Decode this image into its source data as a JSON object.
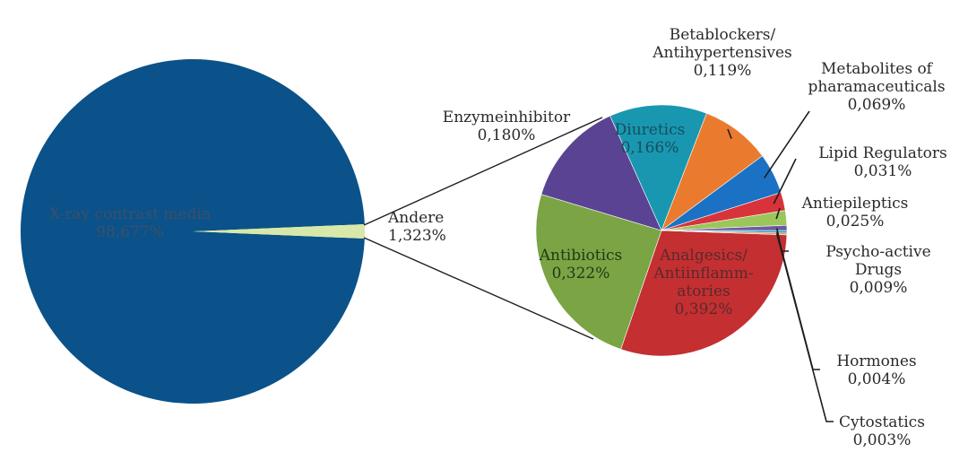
{
  "chart_data": {
    "type": "pie",
    "title": "",
    "main_pie": {
      "slices": [
        {
          "label_lines": [
            "X-ray contrast media",
            "98,677%"
          ],
          "value": 98.677,
          "color": "#0a5289"
        },
        {
          "label_lines": [
            "Andere",
            "1,323%"
          ],
          "value": 1.323,
          "color": "#d8e8a8"
        }
      ]
    },
    "sub_pie": {
      "of": "Andere",
      "slices": [
        {
          "label_lines": [
            "Analgesics/",
            "Antiinflamm-",
            "atories",
            "0,392%"
          ],
          "value": 0.392,
          "color": "#c42f32"
        },
        {
          "label_lines": [
            "Antibiotics",
            "0,322%"
          ],
          "value": 0.322,
          "color": "#7ba444"
        },
        {
          "label_lines": [
            "Enzymeinhibitor",
            "0,180%"
          ],
          "value": 0.18,
          "color": "#5b4393"
        },
        {
          "label_lines": [
            "Diuretics",
            "0,166%"
          ],
          "value": 0.166,
          "color": "#1997b0"
        },
        {
          "label_lines": [
            "Betablockers/",
            "Antihypertensives",
            "0,119%"
          ],
          "value": 0.119,
          "color": "#ea7b2e"
        },
        {
          "label_lines": [
            "Metabolites of",
            "pharamaceuticals",
            "0,069%"
          ],
          "value": 0.069,
          "color": "#1b72c4"
        },
        {
          "label_lines": [
            "Lipid Regulators",
            "0,031%"
          ],
          "value": 0.031,
          "color": "#d8333b"
        },
        {
          "label_lines": [
            "Antiepileptics",
            "0,025%"
          ],
          "value": 0.025,
          "color": "#9bc65a"
        },
        {
          "label_lines": [
            "Psycho-active",
            "Drugs",
            "0,009%"
          ],
          "value": 0.009,
          "color": "#6e5aa4"
        },
        {
          "label_lines": [
            "Hormones",
            "0,004%"
          ],
          "value": 0.004,
          "color": "#20a5c0"
        },
        {
          "label_lines": [
            "Cytostatics",
            "0,003%"
          ],
          "value": 0.003,
          "color": "#f09a50"
        }
      ]
    }
  }
}
